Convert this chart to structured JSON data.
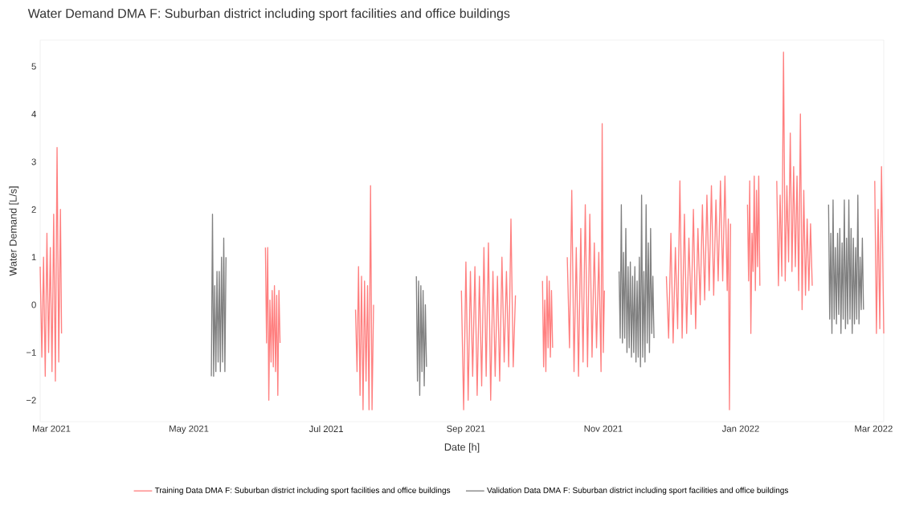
{
  "chart_data": {
    "type": "line",
    "title": "Water Demand DMA F: Suburban district including sport facilities and office buildings",
    "xlabel": "Date [h]",
    "ylabel": "Water Demand [L/s]",
    "xlim": [
      "2021-02-24",
      "2022-03-05T12:00"
    ],
    "ylim": [
      -2.45,
      5.55
    ],
    "xticks": [
      {
        "value": "2021-03-01",
        "label": "Mar 2021"
      },
      {
        "value": "2021-05-01",
        "label": "May 2021"
      },
      {
        "value": "2021-07-01",
        "label": "Jul 2021"
      },
      {
        "value": "2021-09-01",
        "label": "Sep 2021"
      },
      {
        "value": "2021-11-01",
        "label": "Nov 2021"
      },
      {
        "value": "2022-01-01",
        "label": "Jan 2022"
      },
      {
        "value": "2022-03-01",
        "label": "Mar 2022"
      }
    ],
    "yticks": [
      {
        "value": -2,
        "label": "−2"
      },
      {
        "value": -1,
        "label": "−1"
      },
      0,
      1,
      2,
      3,
      4,
      5
    ],
    "legend": "bottom",
    "series": [
      {
        "name": "Training Data DMA F: Suburban district including sport facilities and office buildings",
        "color": "#ff7f7f",
        "x": [
          "2021-02-24T00:00",
          "2021-02-24T18:00",
          "2021-02-25T12:00",
          "2021-02-26T06:00",
          "2021-02-27T00:00",
          "2021-02-27T18:00",
          "2021-02-28T12:00",
          "2021-03-01T06:00",
          "2021-03-02T00:00",
          "2021-03-02T18:00",
          "2021-03-03T12:00",
          "2021-03-04T06:00",
          "2021-03-05T00:00",
          "2021-03-05T12:00",
          "2021-06-01",
          "2021-06-04T00:00",
          "2021-06-04T12:00",
          "2021-06-05T00:00",
          "2021-06-05T12:00",
          "2021-06-06T00:00",
          "2021-06-06T12:00",
          "2021-06-07T00:00",
          "2021-06-07T12:00",
          "2021-06-08T00:00",
          "2021-06-08T12:00",
          "2021-06-09T00:00",
          "2021-06-09T12:00",
          "2021-06-10T00:00",
          "2021-06-10T12:00",
          "2021-07-01",
          "2021-07-14T00:00",
          "2021-07-14T16:00",
          "2021-07-15T08:00",
          "2021-07-16T00:00",
          "2021-07-16T16:00",
          "2021-07-17T08:00",
          "2021-07-18T00:00",
          "2021-07-18T16:00",
          "2021-07-19T08:00",
          "2021-07-20T00:00",
          "2021-07-20T16:00",
          "2021-07-21T08:00",
          "2021-07-22T00:00",
          "2021-08-20",
          "2021-08-30",
          "2021-08-31",
          "2021-09-01",
          "2021-09-02",
          "2021-09-03",
          "2021-09-04",
          "2021-09-05",
          "2021-09-06",
          "2021-09-07",
          "2021-09-08",
          "2021-09-09",
          "2021-09-10",
          "2021-09-11",
          "2021-09-12",
          "2021-09-13",
          "2021-09-14",
          "2021-09-15",
          "2021-09-16",
          "2021-09-17",
          "2021-09-18",
          "2021-09-19",
          "2021-09-20",
          "2021-09-21",
          "2021-09-22",
          "2021-09-23",
          "2021-10-01",
          "2021-10-05T00:00",
          "2021-10-05T12:00",
          "2021-10-06T00:00",
          "2021-10-06T12:00",
          "2021-10-07T00:00",
          "2021-10-07T12:00",
          "2021-10-08T00:00",
          "2021-10-08T12:00",
          "2021-10-09T00:00",
          "2021-10-09T12:00",
          "2021-10-12",
          "2021-10-16",
          "2021-10-17",
          "2021-10-18",
          "2021-10-19",
          "2021-10-20",
          "2021-10-21",
          "2021-10-22",
          "2021-10-23",
          "2021-10-24",
          "2021-10-25",
          "2021-10-26",
          "2021-10-27",
          "2021-10-28",
          "2021-10-29",
          "2021-10-30",
          "2021-10-31T00:00",
          "2021-10-31T12:00",
          "2021-11-01T00:00",
          "2021-11-01T12:00",
          "2021-11-20",
          "2021-11-29",
          "2021-11-30",
          "2021-12-01",
          "2021-12-02",
          "2021-12-03",
          "2021-12-04",
          "2021-12-05",
          "2021-12-06",
          "2021-12-07",
          "2021-12-08",
          "2021-12-09",
          "2021-12-10",
          "2021-12-11",
          "2021-12-12",
          "2021-12-13",
          "2021-12-14",
          "2021-12-15",
          "2021-12-16",
          "2021-12-17",
          "2021-12-18",
          "2021-12-19",
          "2021-12-20",
          "2021-12-21",
          "2021-12-22",
          "2021-12-23",
          "2021-12-24",
          "2021-12-25",
          "2021-12-26T00:00",
          "2021-12-26T12:00",
          "2021-12-27T00:00",
          "2021-12-27T12:00",
          "2022-01-01",
          "2022-01-04T00:00",
          "2022-01-04T12:00",
          "2022-01-05T00:00",
          "2022-01-05T12:00",
          "2022-01-06T00:00",
          "2022-01-06T12:00",
          "2022-01-07T00:00",
          "2022-01-07T12:00",
          "2022-01-08T00:00",
          "2022-01-08T12:00",
          "2022-01-09T00:00",
          "2022-01-09T12:00",
          "2022-01-12",
          "2022-01-17T00:00",
          "2022-01-17T18:00",
          "2022-01-18T12:00",
          "2022-01-19T06:00",
          "2022-01-20T00:00",
          "2022-01-20T18:00",
          "2022-01-21T12:00",
          "2022-01-22T06:00",
          "2022-01-23T00:00",
          "2022-01-23T18:00",
          "2022-01-24T12:00",
          "2022-01-25T06:00",
          "2022-01-26T00:00",
          "2022-01-26T18:00",
          "2022-01-27T12:00",
          "2022-01-28T06:00",
          "2022-01-29T00:00",
          "2022-01-29T18:00",
          "2022-01-30T12:00",
          "2022-01-31T06:00",
          "2022-02-01T00:00",
          "2022-02-01T18:00",
          "2022-02-27",
          "2022-03-01T12:00",
          "2022-03-02T06:00",
          "2022-03-03T00:00",
          "2022-03-03T18:00",
          "2022-03-04T12:00",
          "2022-03-05T12:00"
        ],
        "values": [
          0.8,
          -1.1,
          1.0,
          -1.5,
          1.5,
          -1.0,
          1.2,
          -1.4,
          1.9,
          -1.6,
          3.3,
          -1.2,
          2.0,
          -0.6,
          null,
          1.2,
          -0.8,
          1.2,
          -2.0,
          0.1,
          -1.2,
          0.3,
          -1.3,
          0.4,
          -1.4,
          0.2,
          -1.9,
          0.3,
          -0.8,
          null,
          -0.1,
          -1.4,
          0.8,
          -1.9,
          0.6,
          -2.2,
          0.5,
          -1.6,
          0.4,
          -2.2,
          2.5,
          -2.2,
          0.0,
          null,
          0.3,
          -2.2,
          0.9,
          -2.0,
          0.7,
          -1.5,
          0.8,
          -1.9,
          0.6,
          -1.7,
          1.2,
          -1.5,
          1.3,
          -2.0,
          0.7,
          -1.5,
          0.6,
          -1.6,
          1.0,
          -1.2,
          0.7,
          -1.3,
          1.8,
          -1.3,
          0.2,
          null,
          0.5,
          -1.3,
          0.1,
          -1.4,
          0.6,
          -0.9,
          0.5,
          -1.1,
          0.3,
          -0.9,
          null,
          1.0,
          -0.9,
          2.4,
          -1.4,
          1.2,
          -1.5,
          1.6,
          -1.2,
          2.1,
          -1.3,
          1.9,
          -1.1,
          1.3,
          -0.9,
          1.1,
          -1.4,
          3.8,
          -1.0,
          0.3,
          null,
          0.6,
          -0.7,
          1.5,
          -0.8,
          1.2,
          -0.5,
          2.6,
          -0.7,
          1.9,
          -0.6,
          1.4,
          -0.2,
          2.0,
          -0.5,
          1.6,
          0.0,
          2.1,
          0.1,
          2.3,
          0.3,
          2.5,
          0.2,
          2.2,
          0.5,
          2.6,
          0.5,
          2.7,
          0.3,
          1.8,
          -2.2,
          1.7,
          null,
          2.1,
          0.5,
          2.6,
          -0.6,
          1.5,
          0.7,
          2.7,
          0.3,
          2.4,
          0.8,
          2.7,
          0.4,
          null,
          2.6,
          0.4,
          2.3,
          0.6,
          5.3,
          0.5,
          2.5,
          0.9,
          3.6,
          0.7,
          2.9,
          0.8,
          2.7,
          0.3,
          4.0,
          -0.1,
          2.4,
          0.2,
          1.8,
          0.3,
          1.7,
          0.4,
          null,
          2.6,
          -0.6,
          2.0,
          -0.5,
          2.9,
          -0.6
        ]
      },
      {
        "name": "Validation Data DMA F: Suburban district including sport facilities and office buildings",
        "color": "#808080",
        "x": [
          "2021-05-11T00:00",
          "2021-05-11T12:00",
          "2021-05-12T00:00",
          "2021-05-12T12:00",
          "2021-05-13T00:00",
          "2021-05-13T12:00",
          "2021-05-14T00:00",
          "2021-05-14T12:00",
          "2021-05-15T00:00",
          "2021-05-15T12:00",
          "2021-05-16T00:00",
          "2021-05-16T12:00",
          "2021-05-17T00:00",
          "2021-05-17T12:00",
          "2021-06-01",
          "2021-08-10T00:00",
          "2021-08-10T12:00",
          "2021-08-11T00:00",
          "2021-08-11T12:00",
          "2021-08-12T00:00",
          "2021-08-12T12:00",
          "2021-08-13T00:00",
          "2021-08-13T12:00",
          "2021-08-14T00:00",
          "2021-08-14T12:00",
          "2021-09-01",
          "2021-11-08T00:00",
          "2021-11-08T12:00",
          "2021-11-09T00:00",
          "2021-11-09T12:00",
          "2021-11-10T00:00",
          "2021-11-10T12:00",
          "2021-11-11T00:00",
          "2021-11-11T12:00",
          "2021-11-12T00:00",
          "2021-11-12T12:00",
          "2021-11-13T00:00",
          "2021-11-13T12:00",
          "2021-11-14T00:00",
          "2021-11-14T12:00",
          "2021-11-15T00:00",
          "2021-11-15T12:00",
          "2021-11-16T00:00",
          "2021-11-16T12:00",
          "2021-11-17T00:00",
          "2021-11-17T12:00",
          "2021-11-18T00:00",
          "2021-11-18T12:00",
          "2021-11-19T00:00",
          "2021-11-19T12:00",
          "2021-11-20T00:00",
          "2021-11-20T12:00",
          "2021-11-21T00:00",
          "2021-11-21T12:00",
          "2021-11-22T00:00",
          "2021-11-22T12:00",
          "2021-11-23T00:00",
          "2021-11-23T12:00",
          "2022-01-01",
          "2022-02-09T00:00",
          "2022-02-09T12:00",
          "2022-02-10T00:00",
          "2022-02-10T12:00",
          "2022-02-11T00:00",
          "2022-02-11T12:00",
          "2022-02-12T00:00",
          "2022-02-12T12:00",
          "2022-02-13T00:00",
          "2022-02-13T12:00",
          "2022-02-14T00:00",
          "2022-02-14T12:00",
          "2022-02-15T00:00",
          "2022-02-15T12:00",
          "2022-02-16T00:00",
          "2022-02-16T12:00",
          "2022-02-17T00:00",
          "2022-02-17T12:00",
          "2022-02-18T00:00",
          "2022-02-18T12:00",
          "2022-02-19T00:00",
          "2022-02-19T12:00",
          "2022-02-20T00:00",
          "2022-02-20T12:00",
          "2022-02-21T00:00",
          "2022-02-21T12:00",
          "2022-02-22T00:00",
          "2022-02-22T12:00",
          "2022-02-23T00:00",
          "2022-02-23T12:00",
          "2022-02-24T00:00",
          "2022-02-24T12:00"
        ],
        "values": [
          -1.5,
          1.9,
          -1.5,
          0.4,
          -1.4,
          0.7,
          -1.2,
          0.7,
          -1.4,
          1.0,
          -1.2,
          1.4,
          -1.4,
          1.0,
          null,
          0.6,
          -1.6,
          0.5,
          -1.9,
          0.4,
          -1.4,
          0.3,
          -1.7,
          0.0,
          -1.3,
          null,
          0.7,
          -0.7,
          2.1,
          -0.8,
          1.1,
          -0.7,
          1.6,
          -1.0,
          0.8,
          -0.9,
          0.9,
          -1.1,
          0.6,
          -1.0,
          0.8,
          -1.2,
          0.5,
          -1.1,
          1.0,
          -1.3,
          2.3,
          -1.1,
          0.7,
          -1.2,
          2.1,
          -0.8,
          1.3,
          -1.0,
          1.6,
          -0.6,
          0.6,
          -0.7,
          null,
          2.1,
          -0.3,
          1.5,
          -0.6,
          2.2,
          -0.3,
          1.2,
          -0.4,
          1.5,
          -0.2,
          1.6,
          -0.6,
          1.3,
          -0.3,
          2.2,
          -0.5,
          1.4,
          -0.4,
          2.2,
          -0.3,
          1.6,
          -0.6,
          1.4,
          -0.4,
          1.2,
          -0.3,
          2.3,
          -0.4,
          1.0,
          -0.1,
          1.4,
          -0.1
        ]
      }
    ]
  }
}
